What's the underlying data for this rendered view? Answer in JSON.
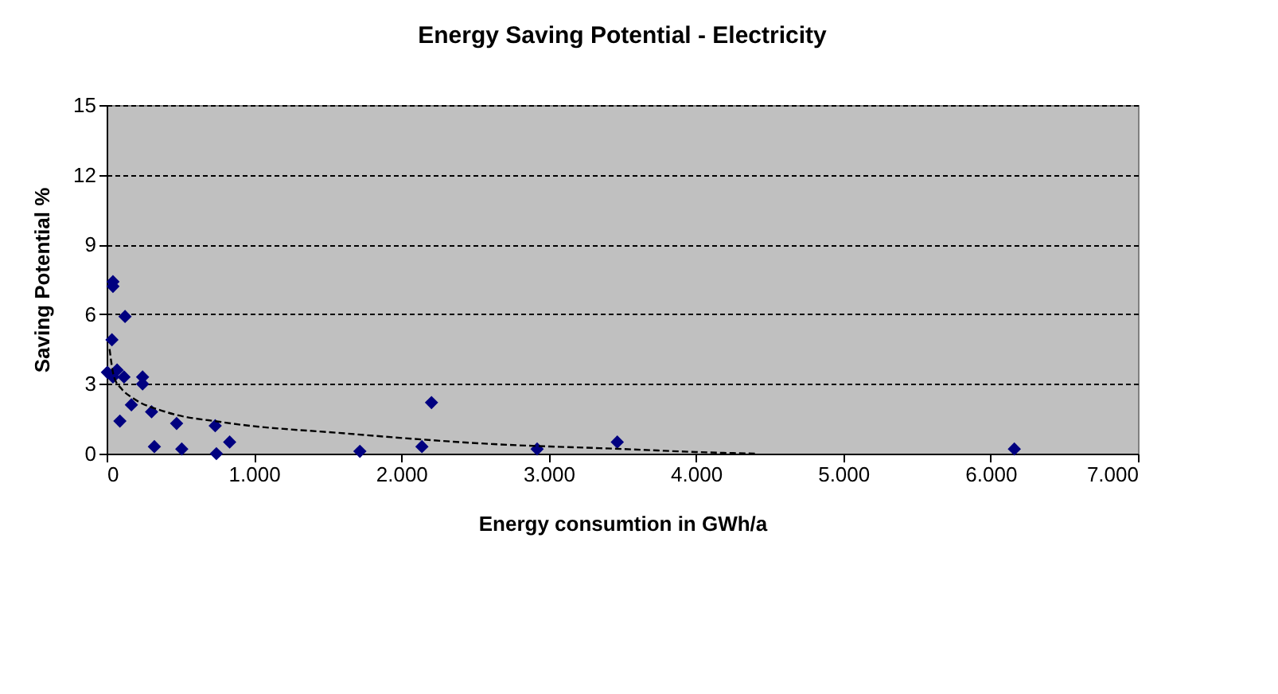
{
  "chart_data": {
    "type": "scatter",
    "title": "Energy Saving Potential - Electricity",
    "xlabel": "Energy consumtion in GWh/a",
    "ylabel": "Saving Potential %",
    "xlim": [
      0,
      7000
    ],
    "ylim": [
      0,
      15
    ],
    "xticks": [
      0,
      {
        "value": 1000,
        "label": "1.000"
      },
      {
        "value": 2000,
        "label": "2.000"
      },
      {
        "value": 3000,
        "label": "3.000"
      },
      {
        "value": 4000,
        "label": "4.000"
      },
      {
        "value": 5000,
        "label": "5.000"
      },
      {
        "value": 6000,
        "label": "6.000"
      },
      {
        "value": 7000,
        "label": "7.000"
      }
    ],
    "yticks": [
      0,
      3,
      6,
      9,
      12,
      15
    ],
    "grid": "y",
    "marker": "diamond",
    "series": [
      {
        "color": "#000080",
        "x": [
          43,
          43,
          125,
          36,
          5,
          43,
          71,
          118,
          244,
          244,
          168,
          90,
          305,
          475,
          737,
          324,
          510,
          745,
          835,
          1719,
          2140,
          2205,
          2922,
          3466,
          6161
        ],
        "values": [
          7.4,
          7.2,
          5.9,
          4.9,
          3.5,
          3.3,
          3.6,
          3.3,
          3.3,
          3.0,
          2.1,
          1.4,
          1.8,
          1.3,
          1.2,
          0.3,
          0.2,
          0.0,
          0.5,
          0.1,
          0.3,
          2.2,
          0.2,
          0.5,
          0.2
        ]
      },
      {
        "type": "line",
        "color": "#000000",
        "line_style": "dashed",
        "marker": "none",
        "x": [
          20,
          50,
          100,
          176,
          400,
          790,
          1620,
          2627,
          3500,
          4000,
          4400
        ],
        "values": [
          4.5,
          3.3,
          2.8,
          2.4,
          1.8,
          1.35,
          0.87,
          0.41,
          0.2,
          0.07,
          0.0
        ]
      }
    ]
  }
}
